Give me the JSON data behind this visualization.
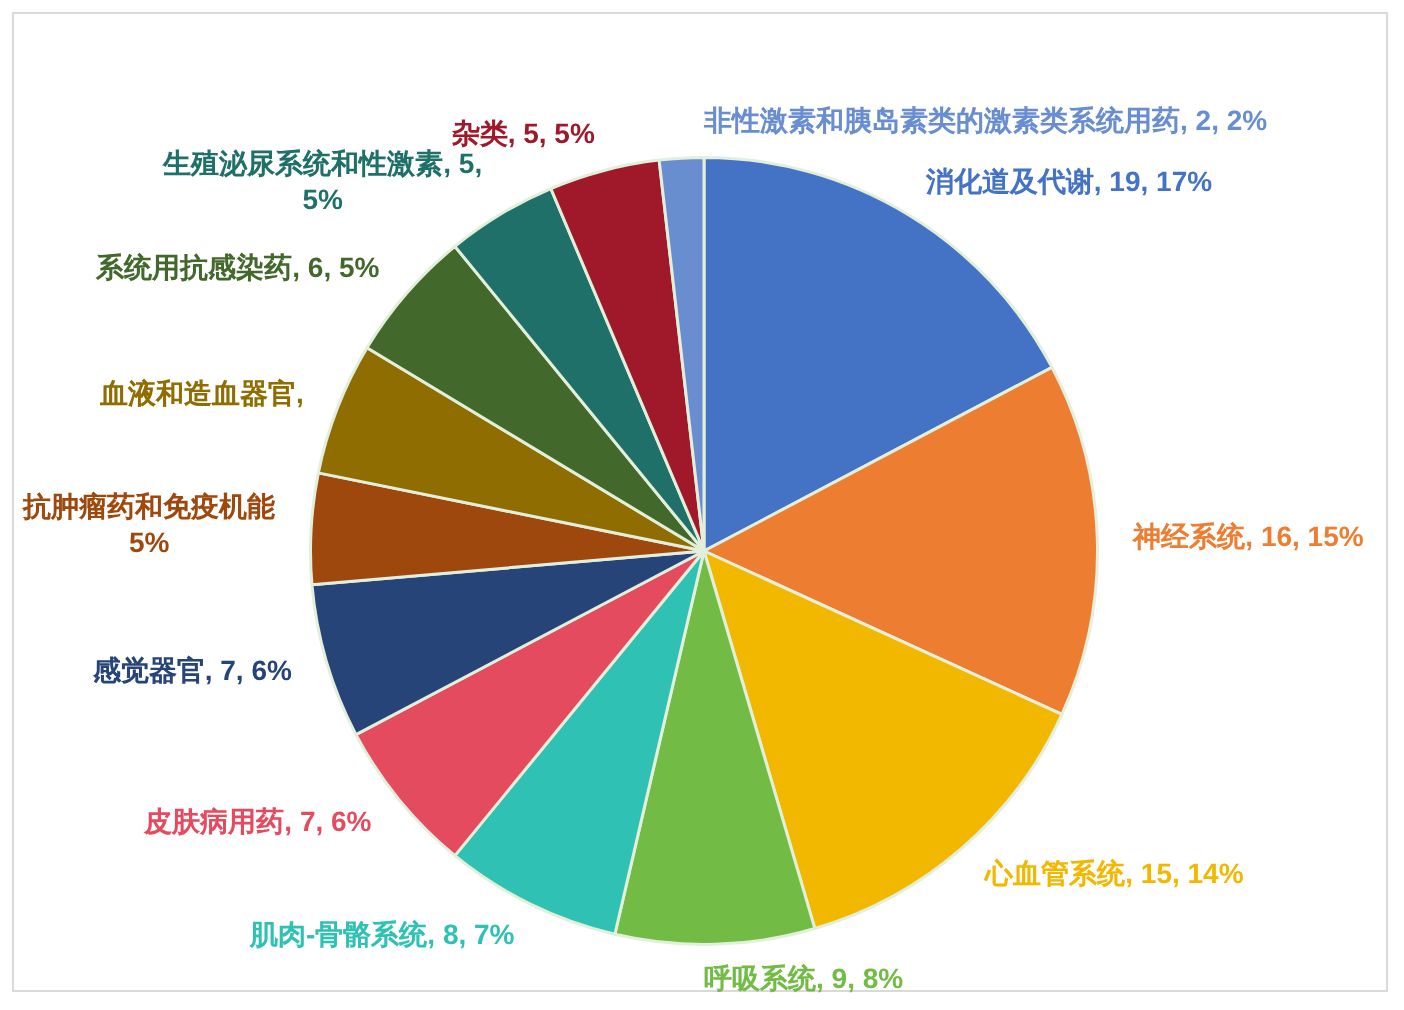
{
  "chart_data": {
    "type": "pie",
    "categories": [
      "消化道及代谢",
      "神经系统",
      "心血管系统",
      "呼吸系统",
      "肌肉-骨骼系统",
      "皮肤病用药",
      "感觉器官",
      "抗肿瘤药和免疫机能",
      "血液和造血器官",
      "系统用抗感染药",
      "生殖泌尿系统和性激素",
      "杂类",
      "非性激素和胰岛素类的激素类系统用药"
    ],
    "values": [
      19,
      16,
      15,
      9,
      8,
      7,
      7,
      5,
      6,
      6,
      5,
      5,
      2
    ],
    "colors": [
      "#4472c4",
      "#ed7d31",
      "#f2b800",
      "#72bb45",
      "#2fc1b4",
      "#e44b5f",
      "#264478",
      "#9e480e",
      "#8f6d00",
      "#43682b",
      "#1f7068",
      "#a0192b",
      "#698ed0"
    ],
    "value_labels": [
      ", 19, 17%",
      ", 16, 15%",
      ", 15, 14%",
      ", 9, 8%",
      ", 8, 7%",
      ", 7, 6%",
      ", 7, 6%",
      "5%",
      ",",
      ", 6, 5%",
      ", 5, 5%",
      ", 5, 5%",
      ", 2, 2%"
    ],
    "legend": false
  }
}
